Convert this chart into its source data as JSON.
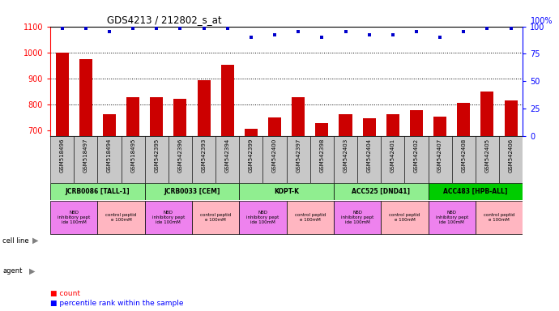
{
  "title": "GDS4213 / 212802_s_at",
  "samples": [
    "GSM518496",
    "GSM518497",
    "GSM518494",
    "GSM518495",
    "GSM542395",
    "GSM542396",
    "GSM542393",
    "GSM542394",
    "GSM542399",
    "GSM542400",
    "GSM542397",
    "GSM542398",
    "GSM542403",
    "GSM542404",
    "GSM542401",
    "GSM542402",
    "GSM542407",
    "GSM542408",
    "GSM542405",
    "GSM542406"
  ],
  "counts": [
    1000,
    975,
    762,
    830,
    828,
    823,
    893,
    952,
    707,
    750,
    830,
    728,
    762,
    748,
    762,
    780,
    755,
    808,
    850,
    815
  ],
  "percentile": [
    98,
    98,
    95,
    98,
    98,
    98,
    98,
    98,
    90,
    92,
    95,
    90,
    95,
    92,
    92,
    95,
    90,
    95,
    98,
    98
  ],
  "cell_lines": [
    {
      "label": "JCRB0086 [TALL-1]",
      "start": 0,
      "end": 4,
      "color": "#90EE90"
    },
    {
      "label": "JCRB0033 [CEM]",
      "start": 4,
      "end": 8,
      "color": "#90EE90"
    },
    {
      "label": "KOPT-K",
      "start": 8,
      "end": 12,
      "color": "#90EE90"
    },
    {
      "label": "ACC525 [DND41]",
      "start": 12,
      "end": 16,
      "color": "#90EE90"
    },
    {
      "label": "ACC483 [HPB-ALL]",
      "start": 16,
      "end": 20,
      "color": "#00CC00"
    }
  ],
  "agents": [
    {
      "label": "NBD\ninhibitory pept\nide 100mM",
      "start": 0,
      "end": 2,
      "color": "#EE82EE"
    },
    {
      "label": "control peptid\ne 100mM",
      "start": 2,
      "end": 4,
      "color": "#FFB6C1"
    },
    {
      "label": "NBD\ninhibitory pept\nide 100mM",
      "start": 4,
      "end": 6,
      "color": "#EE82EE"
    },
    {
      "label": "control peptid\ne 100mM",
      "start": 6,
      "end": 8,
      "color": "#FFB6C1"
    },
    {
      "label": "NBD\ninhibitory pept\nide 100mM",
      "start": 8,
      "end": 10,
      "color": "#EE82EE"
    },
    {
      "label": "control peptid\ne 100mM",
      "start": 10,
      "end": 12,
      "color": "#FFB6C1"
    },
    {
      "label": "NBD\ninhibitory pept\nide 100mM",
      "start": 12,
      "end": 14,
      "color": "#EE82EE"
    },
    {
      "label": "control peptid\ne 100mM",
      "start": 14,
      "end": 16,
      "color": "#FFB6C1"
    },
    {
      "label": "NBD\ninhibitory pept\nide 100mM",
      "start": 16,
      "end": 18,
      "color": "#EE82EE"
    },
    {
      "label": "control peptid\ne 100mM",
      "start": 18,
      "end": 20,
      "color": "#FFB6C1"
    }
  ],
  "ylim_left": [
    680,
    1100
  ],
  "ylim_right": [
    0,
    100
  ],
  "yticks_left": [
    700,
    800,
    900,
    1000,
    1100
  ],
  "yticks_right": [
    0,
    25,
    50,
    75,
    100
  ],
  "bar_color": "#CC0000",
  "dot_color": "#0000CC",
  "background_color": "#FFFFFF",
  "plot_bg_color": "#FFFFFF",
  "xtick_area_color": "#C8C8C8",
  "right_axis_label": "100%"
}
